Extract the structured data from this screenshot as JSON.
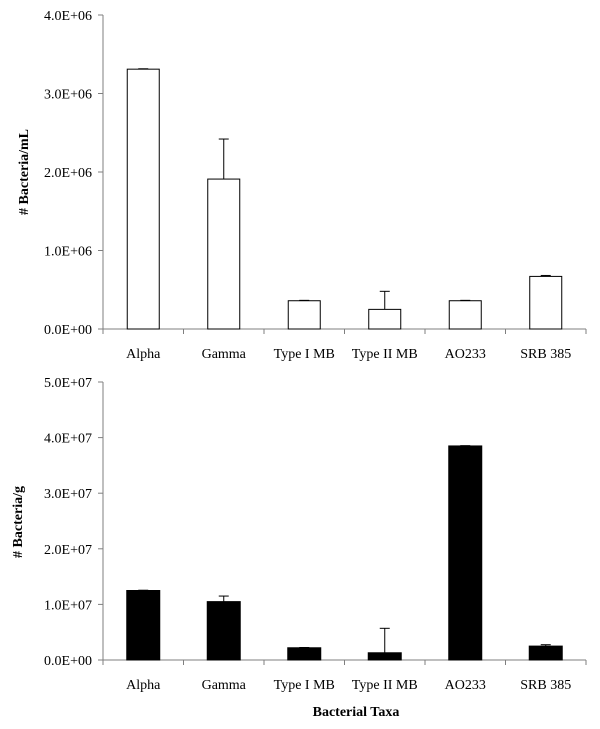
{
  "chart_data": [
    {
      "type": "bar",
      "categories": [
        "Alpha",
        "Gamma",
        "Type I MB",
        "Type II MB",
        "AO233",
        "SRB 385"
      ],
      "values": [
        3310000,
        1910000,
        360000,
        250000,
        360000,
        670000
      ],
      "errors": [
        5000,
        510000,
        5000,
        230000,
        5000,
        12000
      ],
      "xlabel": "",
      "ylabel": "# Bacteria/mL",
      "ylim": [
        0,
        4000000
      ],
      "yticks": [
        0,
        1000000,
        2000000,
        3000000,
        4000000
      ],
      "ytick_labels": [
        "0.0E+00",
        "1.0E+06",
        "2.0E+06",
        "3.0E+06",
        "4.0E+06"
      ],
      "bar_fill": "#ffffff",
      "bar_stroke": "#000000",
      "grid": false
    },
    {
      "type": "bar",
      "categories": [
        "Alpha",
        "Gamma",
        "Type I MB",
        "Type II MB",
        "AO233",
        "SRB 385"
      ],
      "values": [
        12500000,
        10500000,
        2200000,
        1300000,
        38500000,
        2500000
      ],
      "errors": [
        50000,
        1000000,
        50000,
        4400000,
        50000,
        250000
      ],
      "xlabel": "Bacterial Taxa",
      "ylabel": "# Bacteria/g",
      "ylim": [
        0,
        50000000
      ],
      "yticks": [
        0,
        10000000,
        20000000,
        30000000,
        40000000,
        50000000
      ],
      "ytick_labels": [
        "0.0E+00",
        "1.0E+07",
        "2.0E+07",
        "3.0E+07",
        "4.0E+07",
        "5.0E+07"
      ],
      "bar_fill": "#000000",
      "bar_stroke": "#000000",
      "grid": false
    }
  ]
}
